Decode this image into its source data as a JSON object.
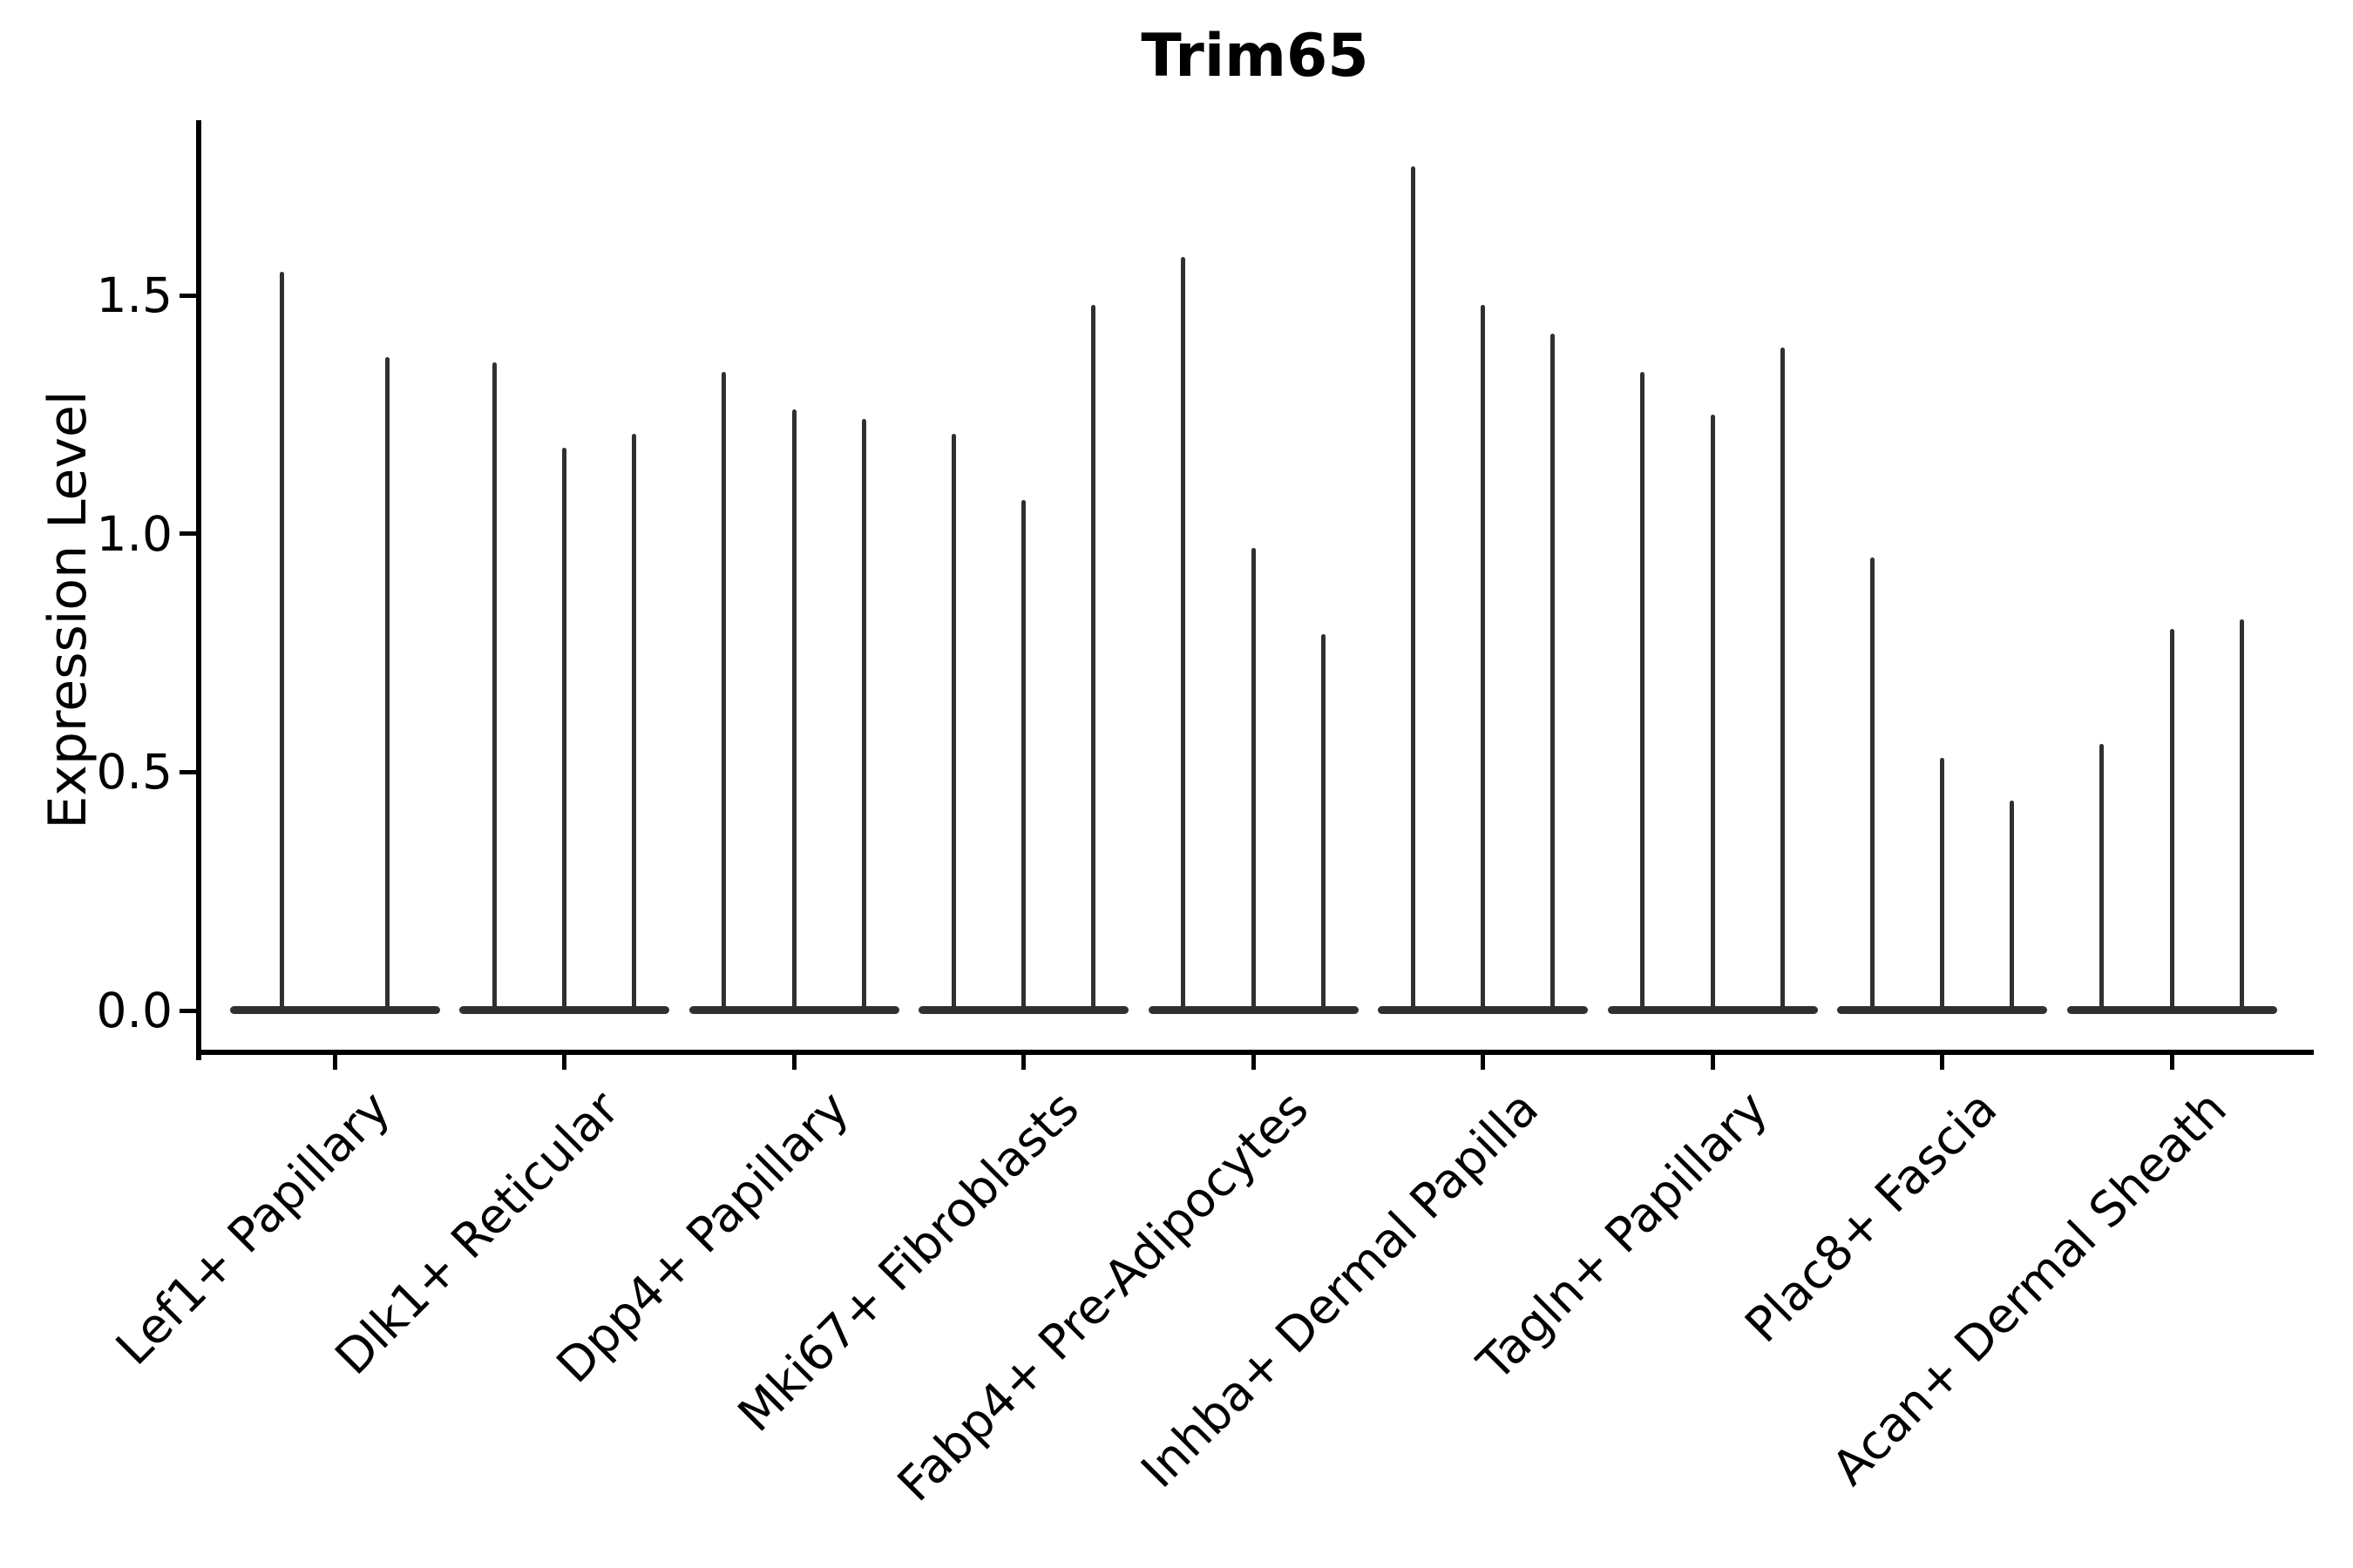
{
  "title": "Trim65",
  "ylabel": "Expression Level",
  "colors": {
    "background": "#ffffff",
    "violin": "#303030",
    "axis": "#000000",
    "text": "#000000"
  },
  "chart_data": {
    "type": "violin",
    "title": "Trim65",
    "xlabel": "",
    "ylabel": "Expression Level",
    "ylim": [
      -0.09,
      1.86
    ],
    "yticks": [
      0.0,
      0.5,
      1.0,
      1.5
    ],
    "ytick_labels": [
      "0.0",
      "0.5",
      "1.0",
      "1.5"
    ],
    "grid": false,
    "legend": false,
    "categories": [
      "Lef1+ Papillary",
      "Dlk1+ Reticular",
      "Dpp4+ Papillary",
      "Mki67+ Fibroblasts",
      "Fabp4+ Pre-Adipocytes",
      "Inhba+ Dermal Papilla",
      "Tagln+ Papillary",
      "Plac8+ Fascia",
      "Acan+ Dermal Sheath"
    ],
    "series": [
      {
        "category": "Lef1+ Papillary",
        "violin_maxima": [
          1.55,
          1.37
        ],
        "violin_mode": 0.0
      },
      {
        "category": "Dlk1+ Reticular",
        "violin_maxima": [
          1.36,
          1.18,
          1.21
        ],
        "violin_mode": 0.0
      },
      {
        "category": "Dpp4+ Papillary",
        "violin_maxima": [
          1.34,
          1.26,
          1.24
        ],
        "violin_mode": 0.0
      },
      {
        "category": "Mki67+ Fibroblasts",
        "violin_maxima": [
          1.21,
          1.07,
          1.48
        ],
        "violin_mode": 0.0
      },
      {
        "category": "Fabp4+ Pre-Adipocytes",
        "violin_maxima": [
          1.58,
          0.97,
          0.79
        ],
        "violin_mode": 0.0
      },
      {
        "category": "Inhba+ Dermal Papilla",
        "violin_maxima": [
          1.77,
          1.48,
          1.42
        ],
        "violin_mode": 0.0
      },
      {
        "category": "Tagln+ Papillary",
        "violin_maxima": [
          1.34,
          1.25,
          1.39
        ],
        "violin_mode": 0.0
      },
      {
        "category": "Plac8+ Fascia",
        "violin_maxima": [
          0.95,
          0.53,
          0.44
        ],
        "violin_mode": 0.0
      },
      {
        "category": "Acan+ Dermal Sheath",
        "violin_maxima": [
          0.56,
          0.8,
          0.82
        ],
        "violin_mode": 0.0
      }
    ]
  }
}
